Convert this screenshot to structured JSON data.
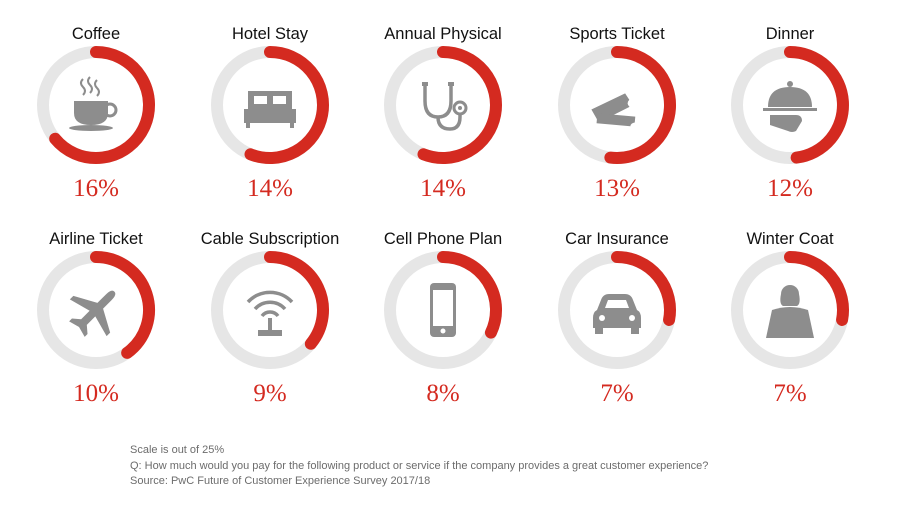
{
  "chart_data": {
    "type": "donut",
    "scale_max": 25,
    "colors": {
      "track": "#e6e6e6",
      "value": "#d42a20",
      "icon": "#8d8d8d"
    },
    "items": [
      {
        "label": "Coffee",
        "value": 16,
        "display": "16%",
        "icon": "coffee-cup-icon"
      },
      {
        "label": "Hotel Stay",
        "value": 14,
        "display": "14%",
        "icon": "bed-icon"
      },
      {
        "label": "Annual Physical",
        "value": 14,
        "display": "14%",
        "icon": "stethoscope-icon"
      },
      {
        "label": "Sports Ticket",
        "value": 13,
        "display": "13%",
        "icon": "ticket-icon"
      },
      {
        "label": "Dinner",
        "value": 12,
        "display": "12%",
        "icon": "serving-cloche-icon"
      },
      {
        "label": "Airline Ticket",
        "value": 10,
        "display": "10%",
        "icon": "airplane-icon"
      },
      {
        "label": "Cable Subscription",
        "value": 9,
        "display": "9%",
        "icon": "wifi-router-icon"
      },
      {
        "label": "Cell Phone Plan",
        "value": 8,
        "display": "8%",
        "icon": "smartphone-icon"
      },
      {
        "label": "Car Insurance",
        "value": 7,
        "display": "7%",
        "icon": "car-icon"
      },
      {
        "label": "Winter Coat",
        "value": 7,
        "display": "7%",
        "icon": "coat-icon"
      }
    ]
  },
  "footer": {
    "scale_note": "Scale is out of 25%",
    "question": "Q: How much would you pay for the following product or service if the company provides a great customer experience?",
    "source": "Source: PwC Future of Customer Experience Survey 2017/18"
  }
}
